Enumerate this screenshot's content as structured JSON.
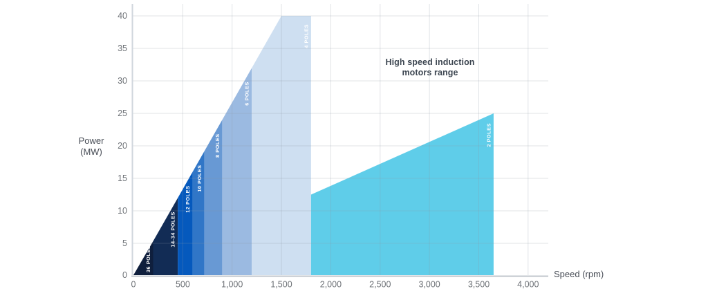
{
  "chart_data": {
    "type": "area",
    "annotation": {
      "line1": "High speed induction",
      "line2": "motors range",
      "color": "#3d4651"
    },
    "xlabel": "Speed (rpm)",
    "ylabel_line1": "Power",
    "ylabel_line2": "(MW)",
    "x_axis": {
      "min": 0,
      "max": 4230,
      "gridline_step_rpm": 500
    },
    "y_axis": {
      "min": 0,
      "max": 40,
      "gridline_step_mw": 5
    },
    "grid": true,
    "x_ticks": [
      {
        "value": 0,
        "label": "0"
      },
      {
        "value": 500,
        "label": "500"
      },
      {
        "value": 1000,
        "label": "1,000"
      },
      {
        "value": 1500,
        "label": "1,500"
      },
      {
        "value": 2000,
        "label": "2,000"
      },
      {
        "value": 2500,
        "label": "2,500"
      },
      {
        "value": 3000,
        "label": "3,000"
      },
      {
        "value": 3500,
        "label": "3,500"
      },
      {
        "value": 4000,
        "label": "4,000"
      }
    ],
    "y_ticks": [
      {
        "value": 0,
        "label": "0"
      },
      {
        "value": 5,
        "label": "5"
      },
      {
        "value": 10,
        "label": "10"
      },
      {
        "value": 15,
        "label": "15"
      },
      {
        "value": 20,
        "label": "20"
      },
      {
        "value": 25,
        "label": "25"
      },
      {
        "value": 30,
        "label": "30"
      },
      {
        "value": 35,
        "label": "35"
      },
      {
        "value": 40,
        "label": "40"
      }
    ],
    "band_label_color": "#ffffff",
    "low_speed_envelope_points": [
      [
        0,
        0
      ],
      [
        1500,
        40
      ],
      [
        1800,
        40
      ]
    ],
    "high_speed_envelope_points": [
      [
        1800,
        12.5
      ],
      [
        3650,
        25
      ]
    ],
    "bands": [
      {
        "label": "36 POLES",
        "rpm_range": [
          0,
          200
        ],
        "power_range_mw": [
          0,
          5.33
        ],
        "top_edge": [
          [
            0,
            0
          ],
          [
            200,
            5.33
          ]
        ],
        "color": "#0f1f3d"
      },
      {
        "label": "14-34 POLES",
        "rpm_range": [
          200,
          450
        ],
        "power_range_mw": [
          5.33,
          12
        ],
        "top_edge": [
          [
            200,
            5.33
          ],
          [
            450,
            12
          ]
        ],
        "color": "#122c55"
      },
      {
        "label": "12 POLES",
        "rpm_range": [
          450,
          600
        ],
        "power_range_mw": [
          12,
          16
        ],
        "top_edge": [
          [
            450,
            12
          ],
          [
            600,
            16
          ]
        ],
        "color": "#0559bd"
      },
      {
        "label": "10 POLES",
        "rpm_range": [
          600,
          720
        ],
        "power_range_mw": [
          16,
          19.2
        ],
        "top_edge": [
          [
            600,
            16
          ],
          [
            720,
            19.2
          ]
        ],
        "color": "#3076c7"
      },
      {
        "label": "8 POLES",
        "rpm_range": [
          720,
          900
        ],
        "power_range_mw": [
          19.2,
          24
        ],
        "top_edge": [
          [
            720,
            19.2
          ],
          [
            900,
            24
          ]
        ],
        "color": "#6899d4"
      },
      {
        "label": "6 POLES",
        "rpm_range": [
          900,
          1200
        ],
        "power_range_mw": [
          24,
          32
        ],
        "top_edge": [
          [
            900,
            24
          ],
          [
            1200,
            32
          ]
        ],
        "color": "#9bbae1"
      },
      {
        "label": "4 POLES",
        "rpm_range": [
          1200,
          1800
        ],
        "power_range_mw": [
          32,
          40
        ],
        "top_edge": [
          [
            1200,
            32
          ],
          [
            1500,
            40
          ],
          [
            1800,
            40
          ]
        ],
        "color": "#cedff1"
      },
      {
        "label": "2 POLES",
        "rpm_range": [
          1800,
          3650
        ],
        "power_range_mw": [
          12.5,
          25
        ],
        "top_edge": [
          [
            1800,
            12.5
          ],
          [
            3650,
            25
          ]
        ],
        "color": "#5fcde9"
      }
    ],
    "colors": {
      "gridline": "#e0e3e8",
      "axis_line": "#c9ced4",
      "tick_label": "#6e7277",
      "axis_title": "#474c55"
    }
  }
}
